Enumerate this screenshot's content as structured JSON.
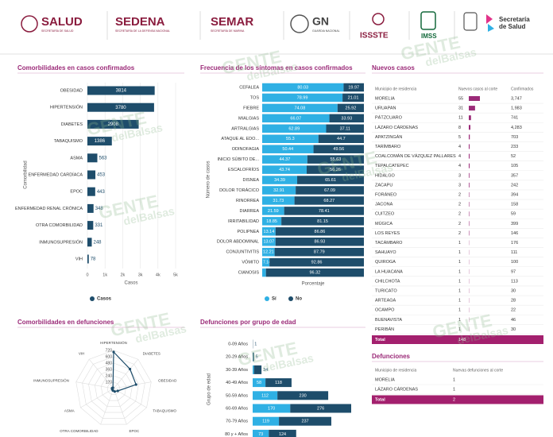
{
  "header": {
    "logos": [
      {
        "name": "SALUD",
        "subtitle": "SECRETARÍA DE SALUD"
      },
      {
        "name": "SEDENA",
        "subtitle": "SECRETARÍA DE LA DEFENSA NACIONAL"
      },
      {
        "name": "SEMAR",
        "subtitle": "SECRETARÍA DE MARINA"
      },
      {
        "name": "GN",
        "subtitle": "GUARDIA NACIONAL"
      },
      {
        "name": "ISSSTE"
      },
      {
        "name": "IMSS"
      }
    ],
    "secretaria": [
      "Secretaría",
      "de Salud"
    ]
  },
  "watermark": [
    "GENTE",
    "delBalsas"
  ],
  "chart_data": [
    {
      "type": "hbar",
      "title": "Comorbilidades en casos confirmados",
      "categories": [
        "OBESIDAD",
        "HIPERTENSIÓN",
        "DIABETES",
        "TABAQUISMO",
        "ASMA",
        "ENFERMEDAD CARDÍACA",
        "EPOC",
        "ENFERMEDAD RENAL CRÓNICA",
        "OTRA COMORBILIDAD",
        "INMUNOSUPRESIÓN",
        "VIH"
      ],
      "series": [
        {
          "name": "Casos",
          "color": "#1e4d6b",
          "values": [
            3814,
            3780,
            2908,
            1386,
            563,
            453,
            443,
            348,
            331,
            248,
            78
          ]
        }
      ],
      "xlim": [
        0,
        5000
      ],
      "xticks": [
        0,
        {
          "value": 1000,
          "label": "1k"
        },
        {
          "value": 2000,
          "label": "2k"
        },
        {
          "value": 3000,
          "label": "3k"
        },
        {
          "value": 4000,
          "label": "4k"
        },
        {
          "value": 5000,
          "label": "5k"
        }
      ],
      "x_label": "Casos",
      "y_label": "Comorbilidad",
      "grid": true
    },
    {
      "type": "stacked_hbar",
      "title": "Frecuencia de los síntomas en casos confirmados",
      "categories": [
        "CEFALEA",
        "TOS",
        "FIEBRE",
        "MIALGIAS",
        "ARTRALGIAS",
        "ATAQUE AL EDO...",
        "ODINOFAGIA",
        "INICIO SÚBITO DE...",
        "ESCALOFRÍOS",
        "DISNEA",
        "DOLOR TORÁCICO",
        "RINORREA",
        "DIARREA",
        "IRRITABILIDAD",
        "POLIPNEA",
        "DOLOR ABDOMINAL",
        "CONJUNTIVITIS",
        "VÓMITO",
        "CIANOSIS"
      ],
      "series": [
        {
          "name": "Sí",
          "color": "#2fb0e4",
          "values": [
            80.03,
            78.99,
            74.08,
            66.07,
            62.89,
            55.3,
            50.44,
            44.37,
            43.74,
            34.39,
            32.91,
            31.73,
            21.59,
            18.85,
            13.14,
            13.07,
            12.21,
            7.14,
            3.68
          ]
        },
        {
          "name": "No",
          "color": "#1e4d6b",
          "values": [
            19.97,
            21.01,
            25.92,
            33.93,
            37.11,
            44.7,
            49.56,
            55.63,
            56.26,
            65.61,
            67.09,
            68.27,
            78.41,
            81.15,
            86.86,
            86.93,
            87.79,
            92.86,
            96.32
          ]
        }
      ],
      "xlim": [
        0,
        100
      ],
      "x_label": "Porcentaje",
      "y_label": "Número de casos"
    },
    {
      "type": "radar",
      "title": "Comorbilidades en defunciones",
      "categories": [
        "HIPERTENSIÓN",
        "DIABETES",
        "OBESIDAD",
        "TABAQUISMO",
        "EPOC",
        "OTRA COMORBILIDAD",
        "ASMA",
        "INMUNOSUPRESIÓN",
        "VIH"
      ],
      "series": [
        {
          "color": "#1e4d6b",
          "values": [
            690,
            480,
            430,
            90,
            60,
            40,
            30,
            30,
            20
          ]
        }
      ],
      "rlim": [
        0,
        720
      ],
      "rticks": [
        120,
        240,
        360,
        480,
        600,
        720
      ]
    },
    {
      "type": "stacked_hbar",
      "title": "Defunciones por grupo de edad",
      "categories": [
        "0-09 Años",
        "20-29 Años",
        "30-39 Años",
        "40-49 Años",
        "50-59 Años",
        "60-69 Años",
        "70-79 Años",
        "80 y + Años"
      ],
      "series": [
        {
          "color": "#2fb0e4",
          "values": [
            0,
            1,
            6,
            58,
            112,
            170,
            119,
            73
          ]
        },
        {
          "color": "#1e4d6b",
          "values": [
            1,
            5,
            34,
            118,
            230,
            276,
            237,
            124
          ]
        }
      ],
      "y_label": "Grupo de edad"
    }
  ],
  "tables": [
    {
      "title": "Nuevos casos",
      "columns": [
        "Municipio de residencia",
        "Nuevos casos al corte",
        "Confirmados"
      ],
      "rows": [
        [
          "MORELIA",
          55,
          "3,747"
        ],
        [
          "URUAPAN",
          31,
          "1,983"
        ],
        [
          "PÁTZCUARO",
          11,
          "741"
        ],
        [
          "LÁZARO CÁRDENAS",
          8,
          "4,283"
        ],
        [
          "APATZINGÁN",
          5,
          "703"
        ],
        [
          "TARÍMBARO",
          4,
          "233"
        ],
        [
          "COALCOMÁN DE VÁZQUEZ PALLARES",
          4,
          "52"
        ],
        [
          "TEPALCATEPEC",
          4,
          "105"
        ],
        [
          "HIDALGO",
          3,
          "357"
        ],
        [
          "ZACAPU",
          3,
          "242"
        ],
        [
          "FORÁNEO",
          2,
          "394"
        ],
        [
          "JACONA",
          2,
          "158"
        ],
        [
          "CUITZEO",
          2,
          "59"
        ],
        [
          "MÚGICA",
          2,
          "399"
        ],
        [
          "LOS REYES",
          2,
          "146"
        ],
        [
          "TACÁMBARO",
          1,
          "176"
        ],
        [
          "SAHUAYO",
          1,
          "111"
        ],
        [
          "QUIROGA",
          1,
          "100"
        ],
        [
          "LA HUACANA",
          1,
          "97"
        ],
        [
          "CHILCHOTA",
          1,
          "113"
        ],
        [
          "TURICATO",
          1,
          "30"
        ],
        [
          "ARTEAGA",
          1,
          "28"
        ],
        [
          "OCAMPO",
          1,
          "22"
        ],
        [
          "BUENAVISTA",
          1,
          "46"
        ],
        [
          "PERIBÁN",
          1,
          "30"
        ]
      ],
      "total": [
        "Total",
        148
      ]
    },
    {
      "title": "Defunciones",
      "columns": [
        "Municipio de residencia",
        "Nuevas defunciones al corte"
      ],
      "rows": [
        [
          "MORELIA",
          1
        ],
        [
          "LÁZARO CÁRDENAS",
          1
        ]
      ],
      "total": [
        "Total",
        2
      ]
    }
  ]
}
